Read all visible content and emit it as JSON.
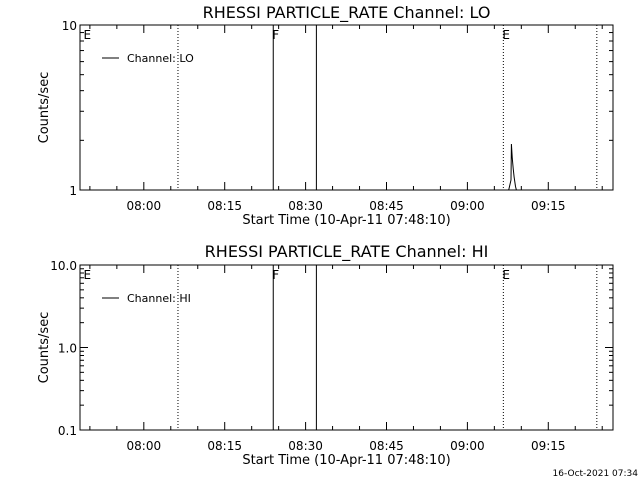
{
  "chart_data": [
    {
      "type": "line",
      "title": "RHESSI PARTICLE_RATE Channel: LO",
      "xlabel": "Start Time (10-Apr-11 07:48:10)",
      "ylabel": "Counts/sec",
      "y_scale": "log",
      "ylim": [
        1,
        10
      ],
      "y_ticks": [
        {
          "value": 1,
          "label": "1"
        },
        {
          "value": 10,
          "label": "10"
        }
      ],
      "xlim": [
        "07:48:10",
        "09:27:00"
      ],
      "x_ticks": [
        "08:00",
        "08:15",
        "08:30",
        "08:45",
        "09:00",
        "09:15"
      ],
      "grid": false,
      "legend_position": "top-left",
      "legend_entries": [
        "Channel: LO"
      ],
      "series": [
        {
          "name": "Channel: LO",
          "x": [
            "09:07:40",
            "09:08:05",
            "09:08:10",
            "09:08:20",
            "09:08:30",
            "09:08:40",
            "09:08:55",
            "09:09:05"
          ],
          "y": [
            1,
            1.15,
            1.9,
            1.55,
            1.35,
            1.2,
            1.05,
            1
          ]
        }
      ],
      "event_markers": [
        {
          "time": "07:49:00",
          "style": "none",
          "label": "E"
        },
        {
          "time": "08:06:20",
          "style": "dotted",
          "label": ""
        },
        {
          "time": "08:24:00",
          "style": "solid",
          "label": "F"
        },
        {
          "time": "08:32:00",
          "style": "solid",
          "label": ""
        },
        {
          "time": "09:06:40",
          "style": "dotted",
          "label": "E"
        },
        {
          "time": "09:24:00",
          "style": "dotted",
          "label": ""
        }
      ]
    },
    {
      "type": "line",
      "title": "RHESSI PARTICLE_RATE Channel: HI",
      "xlabel": "Start Time (10-Apr-11 07:48:10)",
      "ylabel": "Counts/sec",
      "y_scale": "log",
      "ylim": [
        0.1,
        10
      ],
      "y_ticks": [
        {
          "value": 0.1,
          "label": "0.1"
        },
        {
          "value": 1,
          "label": "1.0"
        },
        {
          "value": 10,
          "label": "10.0"
        }
      ],
      "xlim": [
        "07:48:10",
        "09:27:00"
      ],
      "x_ticks": [
        "08:00",
        "08:15",
        "08:30",
        "08:45",
        "09:00",
        "09:15"
      ],
      "grid": false,
      "legend_position": "top-left",
      "legend_entries": [
        "Channel: HI"
      ],
      "series": [
        {
          "name": "Channel: HI",
          "x": [],
          "y": []
        }
      ],
      "event_markers": [
        {
          "time": "07:49:00",
          "style": "none",
          "label": "E"
        },
        {
          "time": "08:06:20",
          "style": "dotted",
          "label": ""
        },
        {
          "time": "08:24:00",
          "style": "solid",
          "label": "F"
        },
        {
          "time": "08:32:00",
          "style": "solid",
          "label": ""
        },
        {
          "time": "09:06:40",
          "style": "dotted",
          "label": "E"
        },
        {
          "time": "09:24:00",
          "style": "dotted",
          "label": ""
        }
      ]
    }
  ],
  "footer": {
    "timestamp": "16-Oct-2021 07:34"
  }
}
